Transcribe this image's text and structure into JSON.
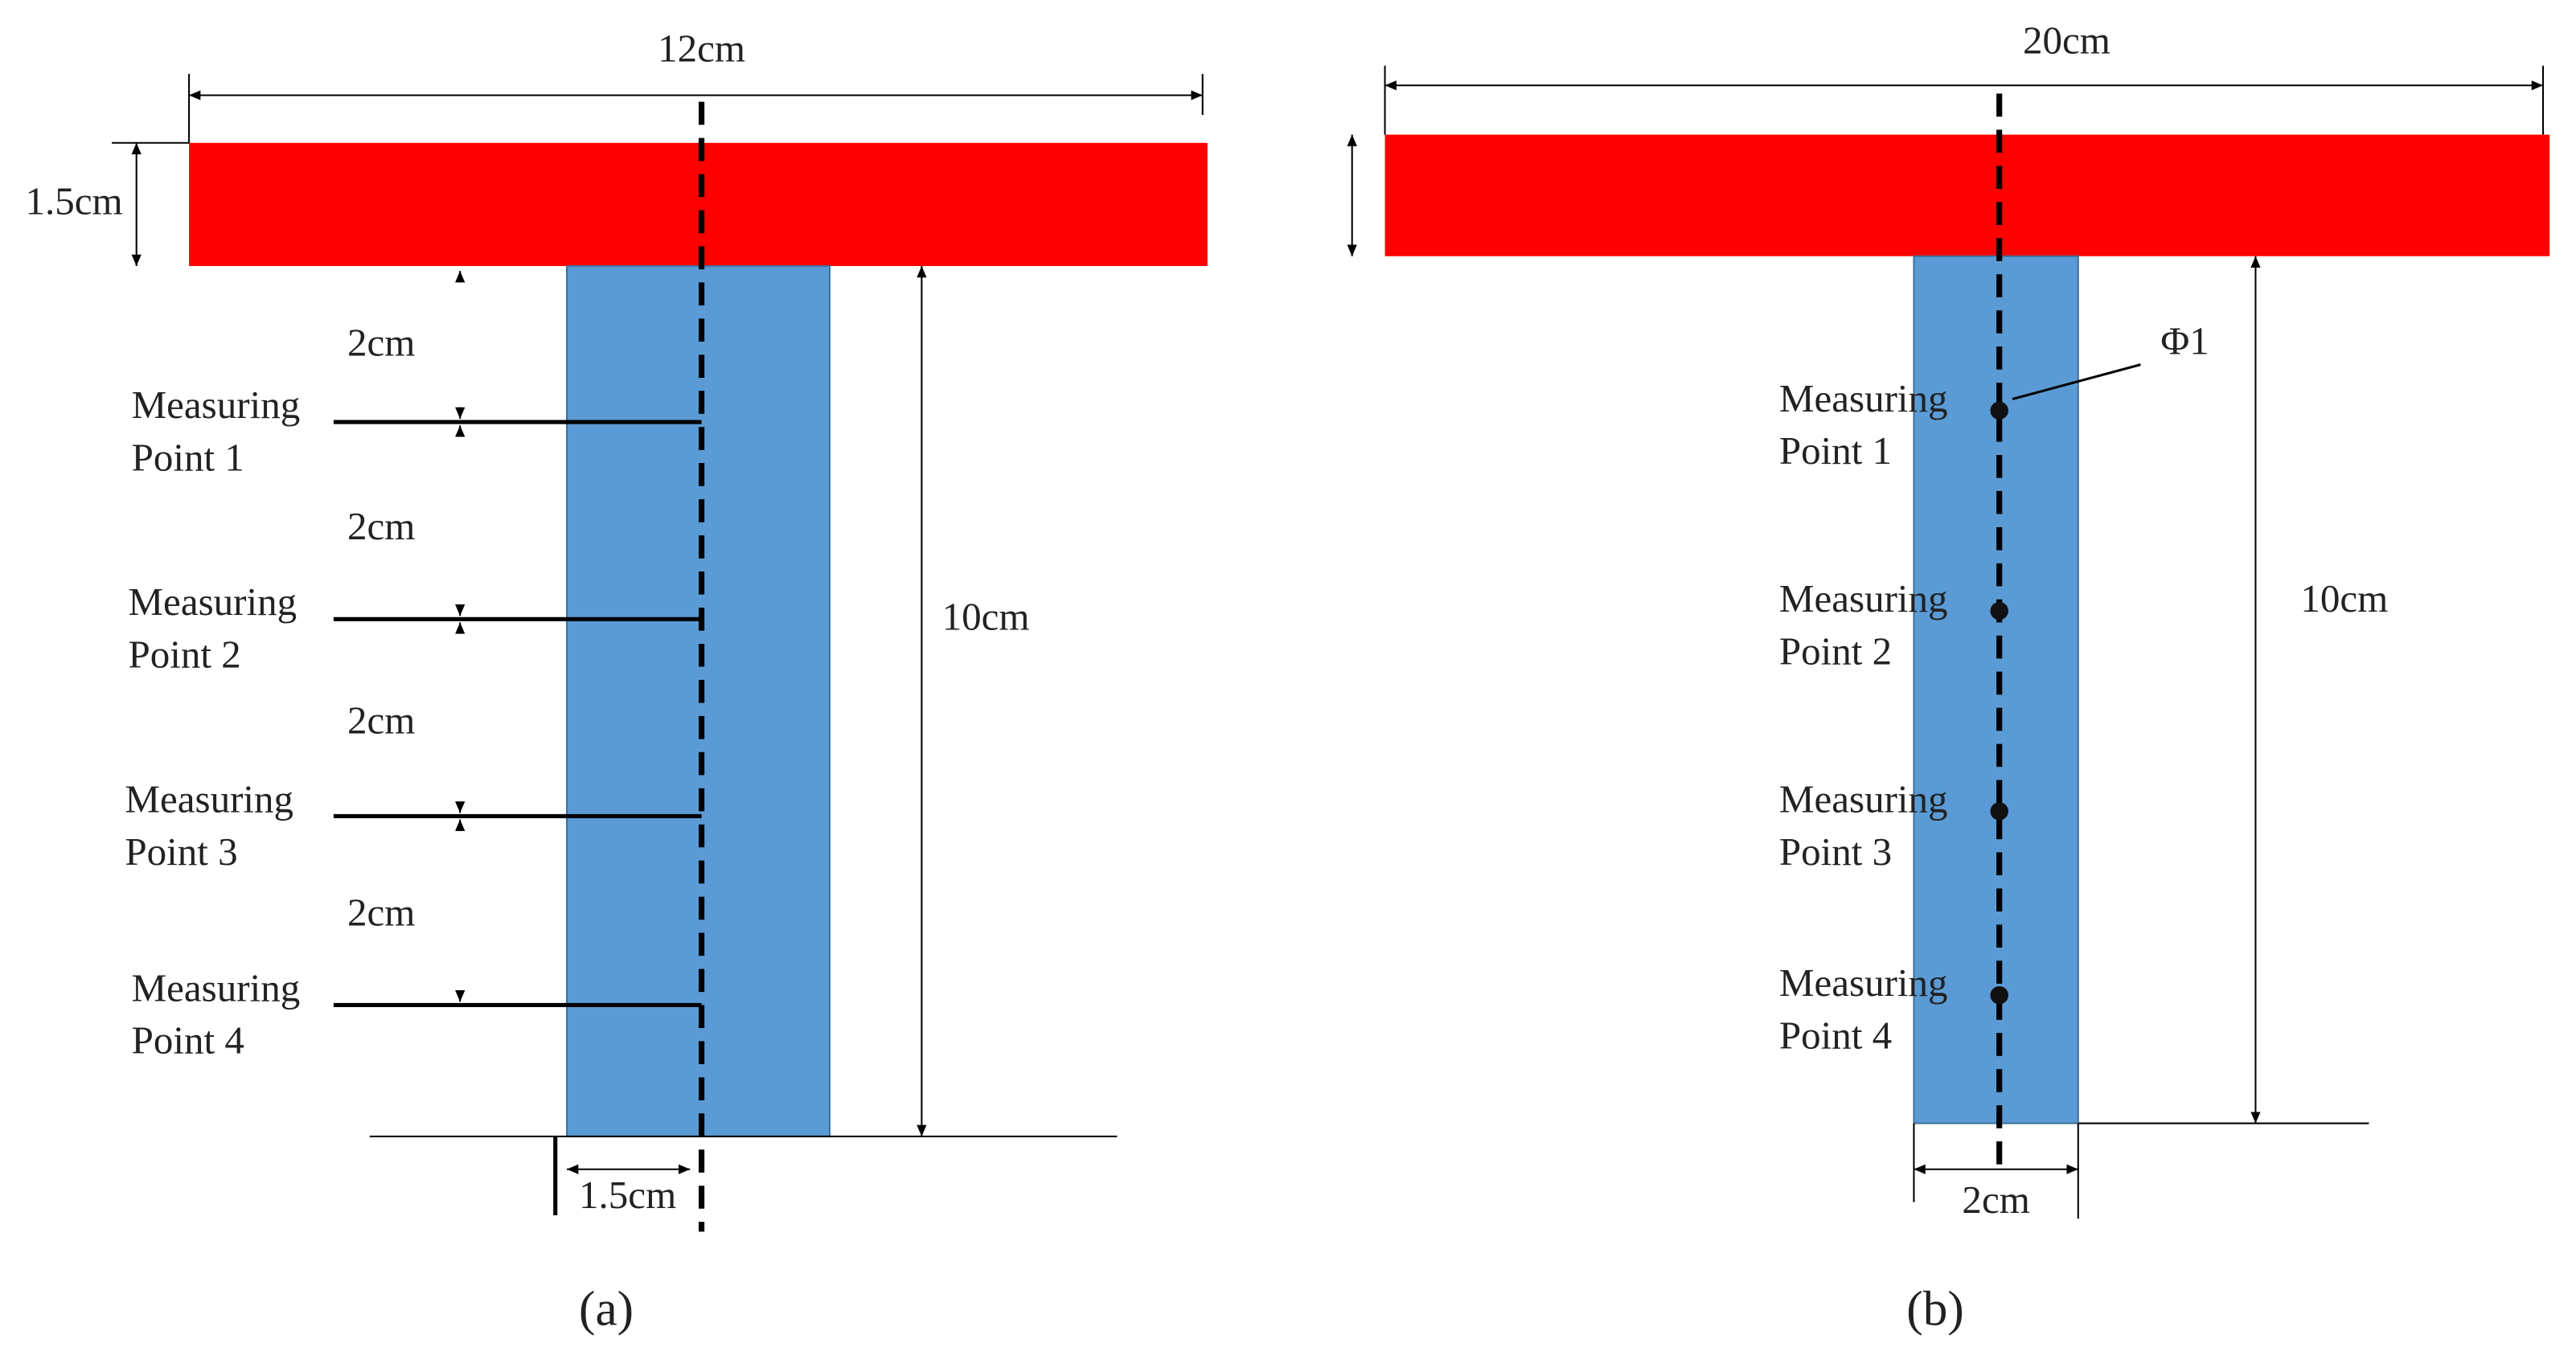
{
  "panel_a": {
    "width_label": "12cm",
    "height_label": "1.5cm",
    "spacing_labels": [
      "2cm",
      "2cm",
      "2cm",
      "2cm"
    ],
    "points": [
      [
        "Measuring",
        "Point 1"
      ],
      [
        "Measuring",
        "Point 2"
      ],
      [
        "Measuring",
        "Point 3"
      ],
      [
        "Measuring",
        "Point 4"
      ]
    ],
    "depth_label": "10cm",
    "half_width_label": "1.5cm",
    "caption": "(a)"
  },
  "panel_b": {
    "width_label": "20cm",
    "diameter_label": "Φ1",
    "points": [
      [
        "Measuring",
        "Point 1"
      ],
      [
        "Measuring",
        "Point 2"
      ],
      [
        "Measuring",
        "Point 3"
      ],
      [
        "Measuring",
        "Point 4"
      ]
    ],
    "depth_label": "10cm",
    "bottom_width_label": "2cm",
    "caption": "(b)"
  }
}
